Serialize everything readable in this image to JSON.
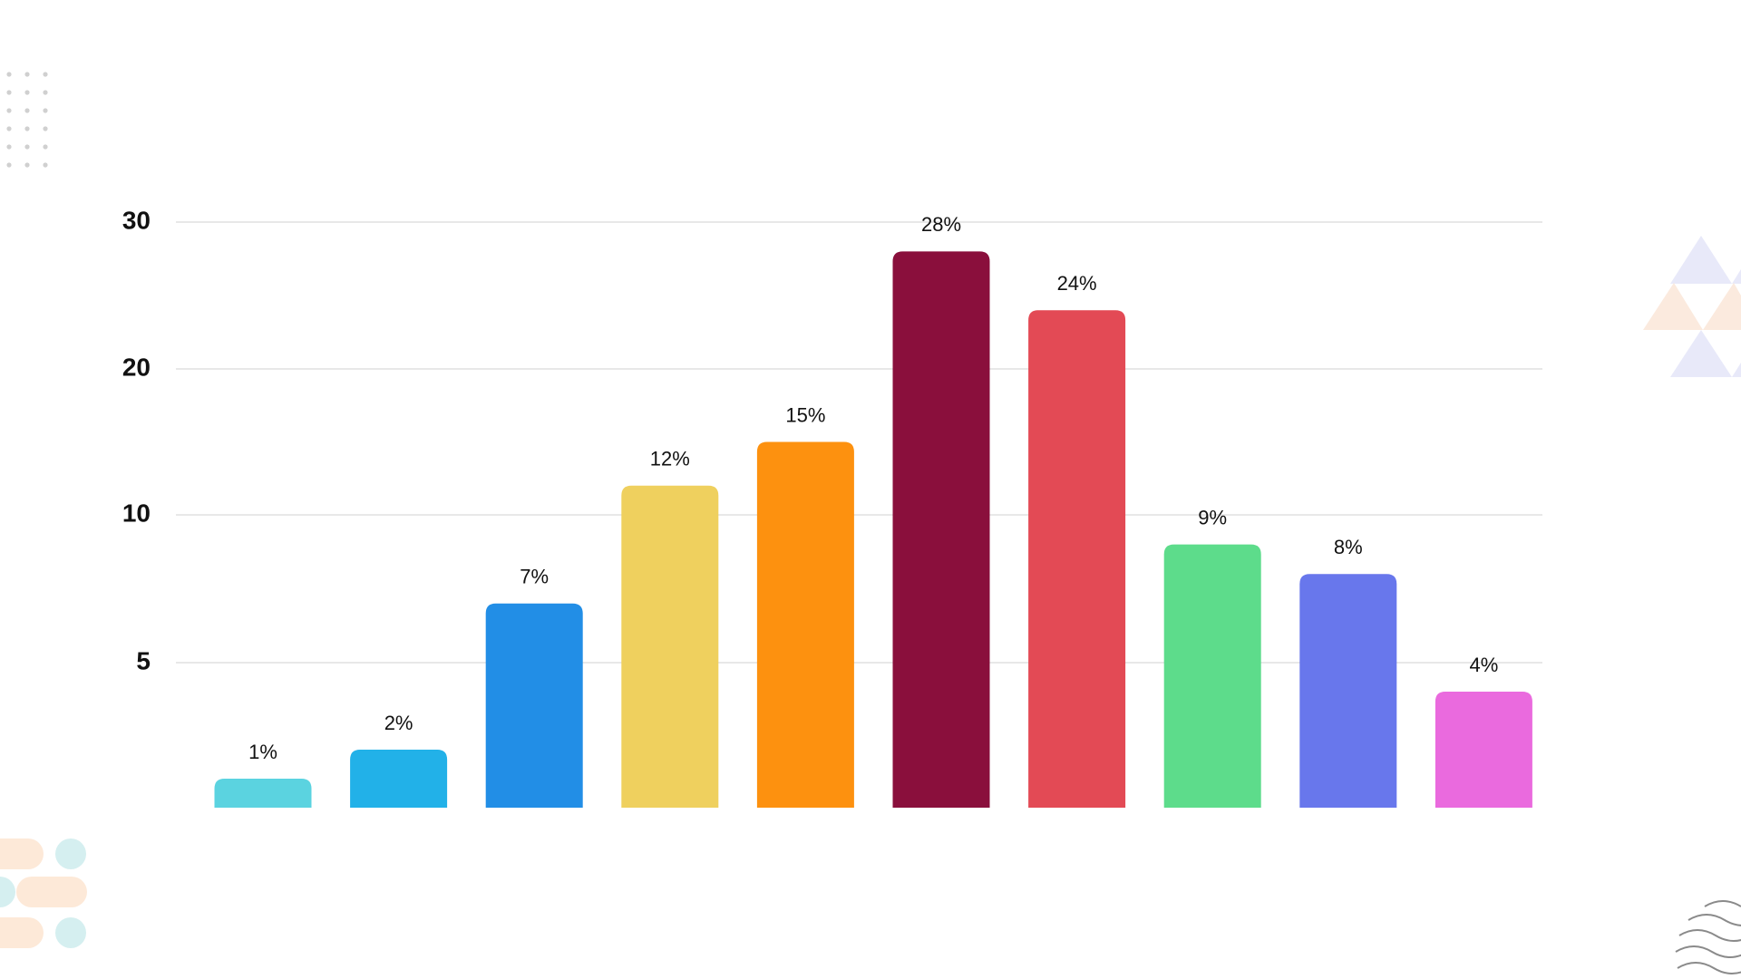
{
  "chart_data": {
    "type": "bar",
    "categories": [
      null,
      null,
      null,
      null,
      null,
      null,
      null,
      null,
      null,
      null
    ],
    "values": [
      1,
      2,
      7,
      12,
      15,
      28,
      24,
      9,
      8,
      4
    ],
    "value_labels": [
      "1%",
      "2%",
      "7%",
      "12%",
      "15%",
      "28%",
      "24%",
      "9%",
      "8%",
      "4%"
    ],
    "colors": [
      "#5bd3e0",
      "#22b1e8",
      "#228ee6",
      "#efd05e",
      "#fd910f",
      "#8a0f3c",
      "#e34a55",
      "#5ddc8b",
      "#6877ec",
      "#ea6ade"
    ],
    "ylim": [
      0,
      30
    ],
    "yticks": [
      5,
      10,
      20,
      30
    ],
    "grid": true
  }
}
